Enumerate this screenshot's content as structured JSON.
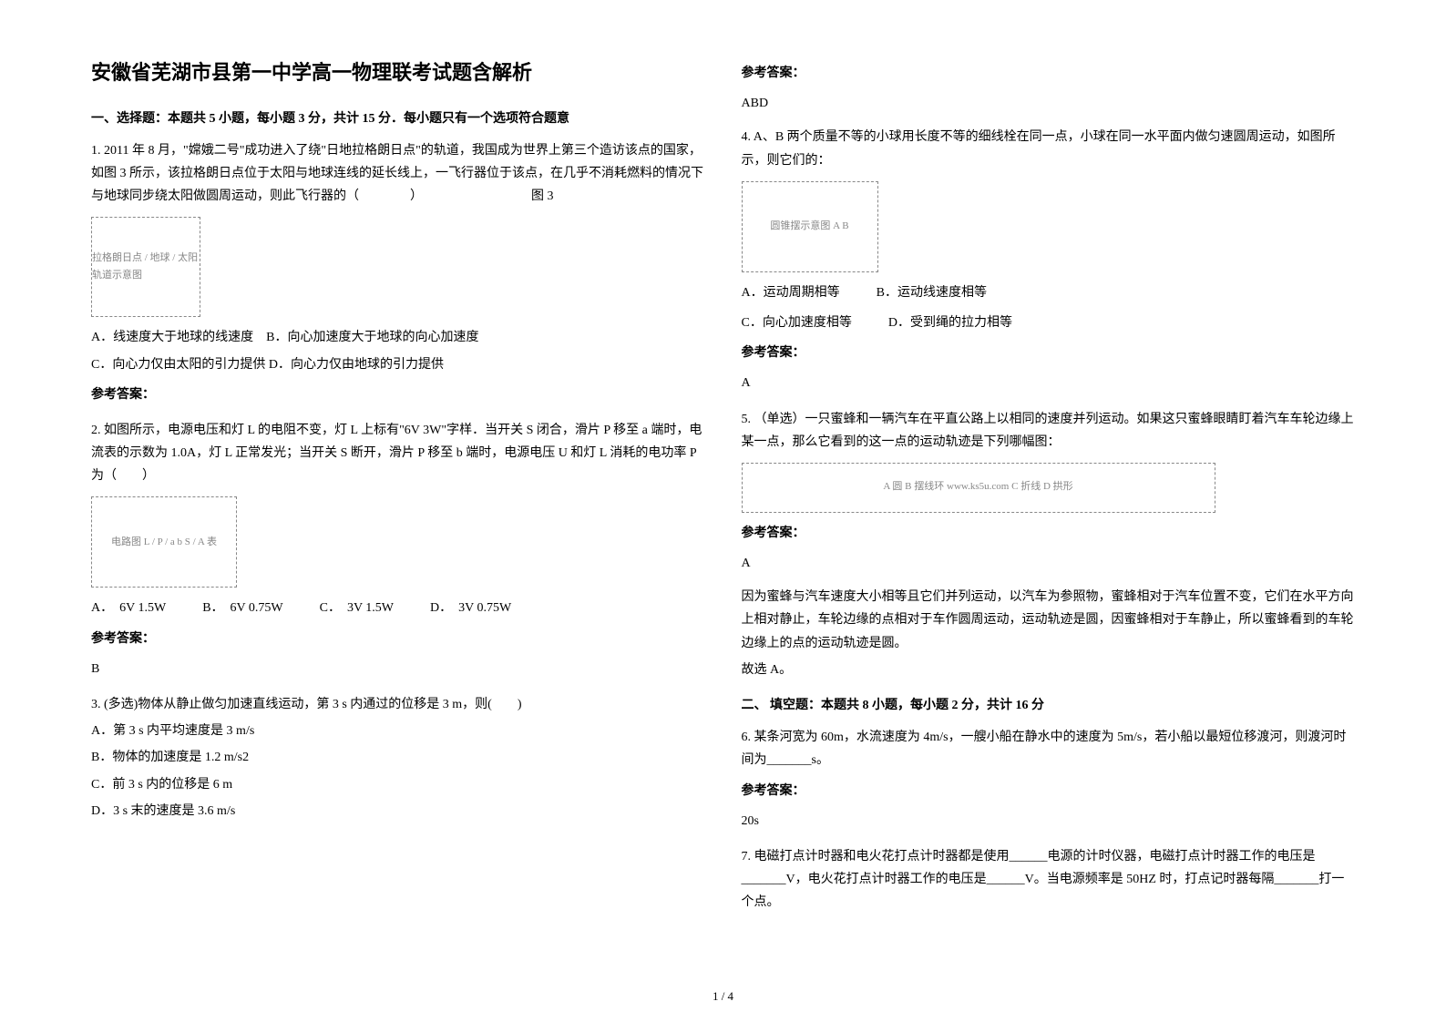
{
  "title": "安徽省芜湖市县第一中学高一物理联考试题含解析",
  "sec1_heading": "一、选择题：本题共 5 小题，每小题 3 分，共计 15 分．每小题只有一个选项符合题意",
  "q1": {
    "text": "1. 2011 年 8 月，\"嫦娥二号\"成功进入了绕\"日地拉格朗日点\"的轨道，我国成为世界上第三个造访该点的国家，如图 3 所示，该拉格朗日点位于太阳与地球连线的延长线上，一飞行器位于该点，在几乎不消耗燃料的情况下与地球同步绕太阳做圆周运动，则此飞行器的（　　　　）　　　　　　　　　图 3",
    "optAB": "A．线速度大于地球的线速度　B．向心加速度大于地球的向心加速度",
    "optCD": "C．向心力仅由太阳的引力提供 D．向心力仅由地球的引力提供",
    "ans_label": "参考答案：",
    "fig": "拉格朗日点 / 地球 / 太阳 轨道示意图"
  },
  "q2": {
    "text": "2. 如图所示，电源电压和灯 L 的电阻不变，灯 L 上标有\"6V 3W\"字样．当开关 S 闭合，滑片 P 移至 a 端时，电流表的示数为 1.0A，灯 L 正常发光；当开关 S 断开，滑片 P 移至 b 端时，电源电压 U 和灯 L 消耗的电功率 P 为（　　）",
    "optA": "A．　6V  1.5W",
    "optB": "B．　6V  0.75W",
    "optC": "C．　3V  1.5W",
    "optD": "D．　3V  0.75W",
    "ans_label": "参考答案：",
    "ans": "B",
    "fig": "电路图 L / P / a b S / A 表"
  },
  "q3": {
    "text": "3. (多选)物体从静止做匀加速直线运动，第 3 s 内通过的位移是 3 m，则(　　)",
    "optA": "A．第 3 s 内平均速度是 3 m/s",
    "optB": "B．物体的加速度是 1.2 m/s2",
    "optC": "C．前 3 s 内的位移是 6 m",
    "optD": "D．3 s 末的速度是 3.6 m/s",
    "ans_label": "参考答案：",
    "ans": "ABD"
  },
  "q4": {
    "text": "4. A、B 两个质量不等的小球用长度不等的细线栓在同一点，小球在同一水平面内做匀速圆周运动，如图所示，则它们的：",
    "optA": "A．运动周期相等",
    "optB": "B．运动线速度相等",
    "optC": "C．向心加速度相等",
    "optD": "D．受到绳的拉力相等",
    "ans_label": "参考答案：",
    "ans": "A",
    "fig": "圆锥摆示意图 A B"
  },
  "q5": {
    "text": "5. （单选）一只蜜蜂和一辆汽车在平直公路上以相同的速度并列运动。如果这只蜜蜂眼睛盯着汽车车轮边缘上某一点，那么它看到的这一点的运动轨迹是下列哪幅图：",
    "ans_label": "参考答案：",
    "ans": "A",
    "explain": "因为蜜蜂与汽车速度大小相等且它们并列运动，以汽车为参照物，蜜蜂相对于汽车位置不变，它们在水平方向上相对静止，车轮边缘的点相对于车作圆周运动，运动轨迹是圆，因蜜蜂相对于车静止，所以蜜蜂看到的车轮边缘上的点的运动轨迹是圆。",
    "pick": "故选 A。",
    "fig": "A 圆  B 摆线环  www.ks5u.com  C 折线  D 拱形"
  },
  "sec2_heading": "二、 填空题：本题共 8 小题，每小题 2 分，共计 16 分",
  "q6": {
    "text": "6. 某条河宽为 60m，水流速度为 4m/s，一艘小船在静水中的速度为 5m/s，若小船以最短位移渡河，则渡河时间为_______s。",
    "ans_label": "参考答案：",
    "ans": "20s"
  },
  "q7": {
    "text": "7. 电磁打点计时器和电火花打点计时器都是使用______电源的计时仪器，电磁打点计时器工作的电压是_______V，电火花打点计时器工作的电压是______V。当电源频率是 50HZ 时，打点记时器每隔_______打一个点。"
  },
  "pagenum": "1 / 4"
}
